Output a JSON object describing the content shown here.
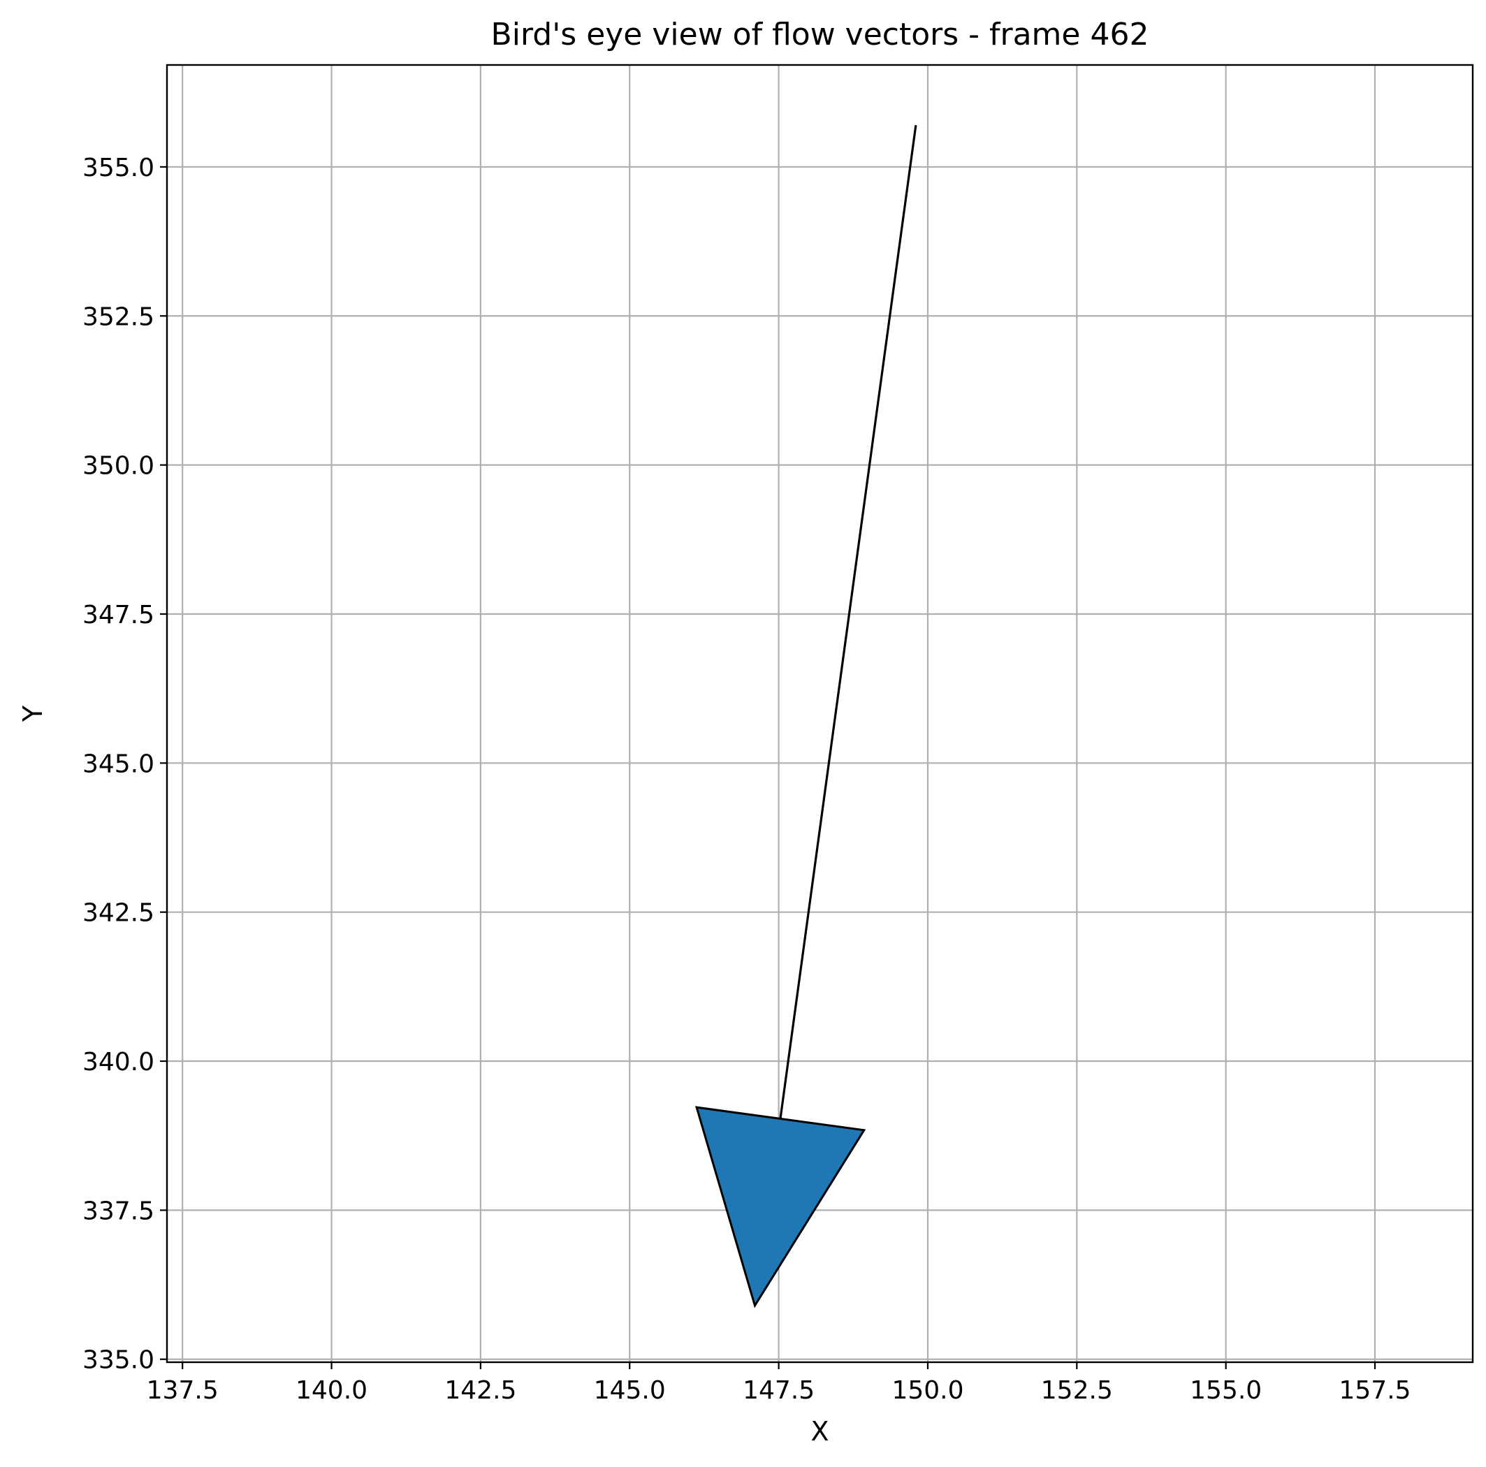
{
  "chart_data": {
    "type": "quiver",
    "title": "Bird's eye view of flow vectors - frame 462",
    "xlabel": "X",
    "ylabel": "Y",
    "xlim": [
      137.24,
      159.14
    ],
    "ylim": [
      356.71,
      334.95
    ],
    "y_inverted": true,
    "grid": true,
    "xticks": [
      "137.5",
      "140.0",
      "142.5",
      "145.0",
      "147.5",
      "150.0",
      "152.5",
      "155.0",
      "157.5"
    ],
    "yticks": [
      "335.0",
      "337.5",
      "340.0",
      "342.5",
      "345.0",
      "347.5",
      "350.0",
      "352.5",
      "355.0"
    ],
    "vectors": [
      {
        "x": 149.8,
        "y": 355.7,
        "head_x": 147.1,
        "head_y": 335.9,
        "color": "#1f77b4",
        "edgecolor": "#000000"
      }
    ]
  }
}
